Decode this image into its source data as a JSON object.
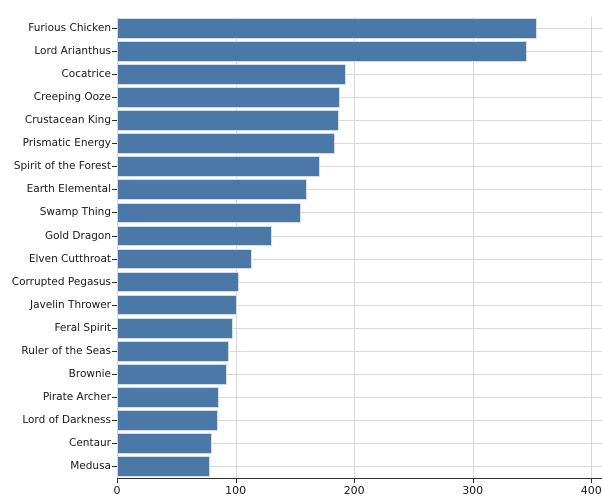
{
  "chart_data": {
    "type": "bar",
    "orientation": "horizontal",
    "title": "",
    "xlabel": "",
    "ylabel": "",
    "categories": [
      "Furious Chicken",
      "Lord Arianthus",
      "Cocatrice",
      "Creeping Ooze",
      "Crustacean King",
      "Prismatic Energy",
      "Spirit of the Forest",
      "Earth Elemental",
      "Swamp Thing",
      "Gold Dragon",
      "Elven Cutthroat",
      "Corrupted Pegasus",
      "Javelin Thrower",
      "Feral Spirit",
      "Ruler of the Seas",
      "Brownie",
      "Pirate Archer",
      "Lord of Darkness",
      "Centaur",
      "Medusa"
    ],
    "values": [
      354,
      346,
      193,
      188,
      187,
      184,
      171,
      160,
      155,
      131,
      114,
      103,
      101,
      98,
      94,
      93,
      86,
      85,
      80,
      78
    ],
    "xticks": [
      0,
      100,
      200,
      300,
      400
    ],
    "xtick_labels": [
      "0",
      "100",
      "200",
      "300",
      "400"
    ],
    "xlim": [
      0,
      409
    ],
    "grid": true,
    "legend": false,
    "colors": {
      "bar": "#4c78a8",
      "bar_edge": "#cfdeee",
      "grid": "#d9d9d9",
      "axis": "#2e2e2e",
      "text": "#1a1a1a",
      "background": "#ffffff"
    }
  }
}
